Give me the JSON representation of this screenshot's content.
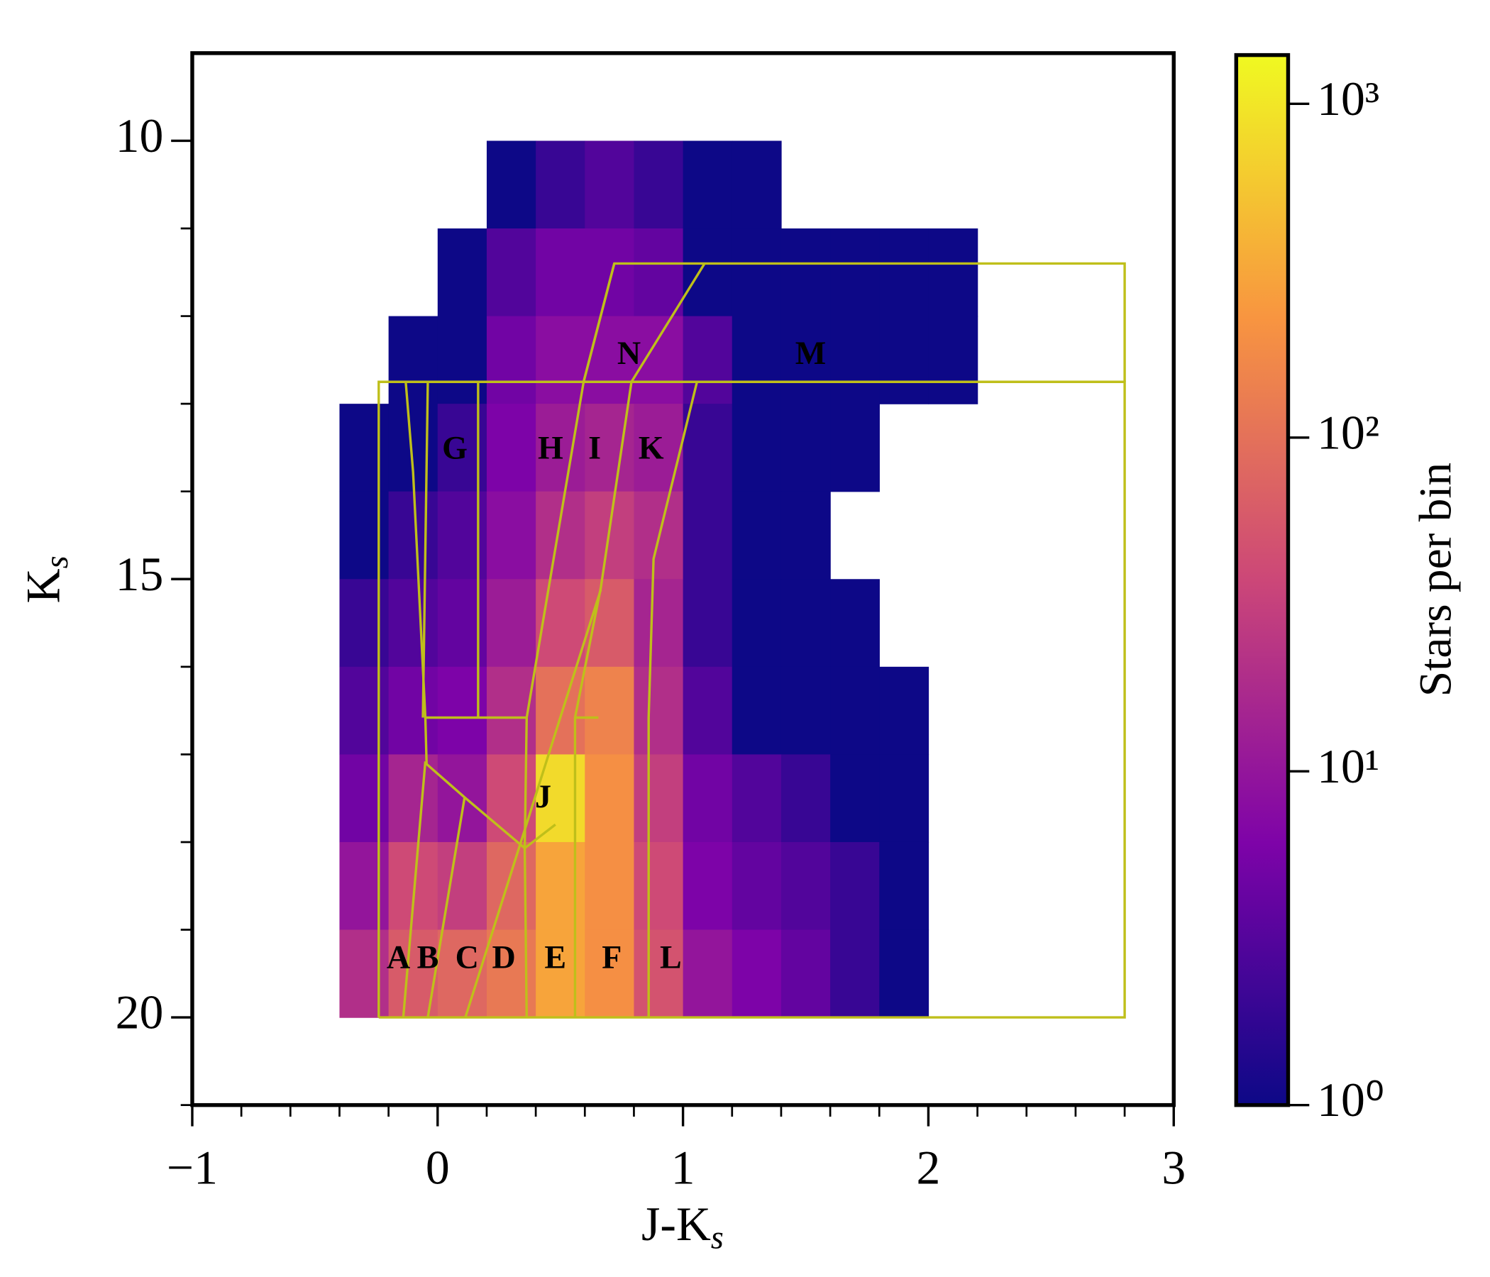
{
  "chart_data": {
    "type": "hess",
    "xlabel": {
      "main": "J-K",
      "sub": "s"
    },
    "ylabel": {
      "main": "K",
      "sub": "s"
    },
    "colorbar_label": "Stars per bin",
    "xlim": [
      -1,
      3
    ],
    "ylim": [
      21,
      9
    ],
    "xticks": [
      {
        "value": -1,
        "label": "−1"
      },
      0,
      1,
      2,
      3
    ],
    "yticks": [
      10,
      15,
      20
    ],
    "xminorticks": [
      -0.8,
      -0.6,
      -0.4,
      -0.2,
      0.2,
      0.4,
      0.6,
      0.8,
      1.2,
      1.4,
      1.6,
      1.8,
      2.2,
      2.4,
      2.6,
      2.8
    ],
    "yminorticks": [
      11,
      12,
      13,
      14,
      16,
      17,
      18,
      19,
      21
    ],
    "log_color": true,
    "clim": [
      1,
      1400
    ],
    "cticks": [
      {
        "value": 1,
        "label": "10⁰"
      },
      {
        "value": 10,
        "label": "10¹"
      },
      {
        "value": 100,
        "label": "10²"
      },
      {
        "value": 1000,
        "label": "10³"
      }
    ],
    "xbins": [
      -0.4,
      -0.2,
      0,
      0.2,
      0.4,
      0.6,
      0.8,
      1.0,
      1.2,
      1.4,
      1.6,
      1.8,
      2.0,
      2.2
    ],
    "ybins": [
      10,
      11,
      12,
      13,
      14,
      15,
      16,
      17,
      18,
      19,
      20
    ],
    "counts": [
      [
        0,
        0,
        0,
        1,
        2,
        3,
        2,
        1,
        1,
        0,
        0,
        0,
        0
      ],
      [
        0,
        0,
        1,
        3,
        5,
        5,
        4,
        1,
        1,
        1,
        1,
        1,
        1
      ],
      [
        0,
        1,
        1,
        5,
        8,
        8,
        8,
        3,
        1,
        1,
        1,
        1,
        1
      ],
      [
        1,
        1,
        2,
        6,
        12,
        15,
        12,
        2,
        1,
        1,
        1,
        0,
        0
      ],
      [
        1,
        2,
        3,
        8,
        20,
        30,
        20,
        2,
        1,
        1,
        0,
        0,
        0
      ],
      [
        2,
        3,
        4,
        12,
        40,
        60,
        15,
        2,
        1,
        1,
        1,
        0,
        0
      ],
      [
        3,
        5,
        6,
        20,
        100,
        150,
        20,
        3,
        1,
        1,
        1,
        1,
        0
      ],
      [
        5,
        15,
        10,
        40,
        800,
        200,
        30,
        5,
        3,
        2,
        1,
        1,
        0
      ],
      [
        10,
        40,
        30,
        80,
        300,
        200,
        40,
        6,
        4,
        3,
        2,
        1,
        0
      ],
      [
        20,
        60,
        80,
        120,
        300,
        200,
        50,
        10,
        6,
        4,
        2,
        1,
        0
      ]
    ],
    "boundary_color": "#bfbf1a",
    "boundaries": [
      {
        "x": [
          -0.24,
          -0.24,
          2.8,
          2.8,
          -0.24
        ],
        "y": [
          20,
          12.75,
          12.75,
          20,
          20
        ]
      },
      {
        "x": [
          0.595,
          0.72,
          2.8,
          2.8
        ],
        "y": [
          12.75,
          11.4,
          11.4,
          12.75
        ]
      },
      {
        "x": [
          1.088,
          0.79
        ],
        "y": [
          11.4,
          12.75
        ]
      },
      {
        "x": [
          -0.13,
          -0.1,
          -0.05,
          0.36
        ],
        "y": [
          12.75,
          13.78,
          16.58,
          16.58
        ]
      },
      {
        "x": [
          -0.04,
          -0.06
        ],
        "y": [
          12.75,
          16.58
        ]
      },
      {
        "x": [
          0.165,
          0.165
        ],
        "y": [
          12.75,
          16.58
        ]
      },
      {
        "x": [
          -0.05,
          -0.045,
          0.11,
          0.355,
          0.48
        ],
        "y": [
          16.58,
          17.11,
          17.49,
          18.07,
          17.8
        ]
      },
      {
        "x": [
          0.72,
          0.595,
          0.363,
          0.355,
          0.363
        ],
        "y": [
          11.4,
          12.75,
          16.58,
          18.07,
          20
        ]
      },
      {
        "x": [
          0.79,
          0.665,
          0.56,
          0.56
        ],
        "y": [
          12.75,
          15.1,
          16.58,
          20
        ]
      },
      {
        "x": [
          1.057,
          0.88,
          0.86,
          0.86
        ],
        "y": [
          12.75,
          14.77,
          16.58,
          20
        ]
      },
      {
        "x": [
          0.56,
          0.655
        ],
        "y": [
          16.58,
          16.58
        ]
      },
      {
        "x": [
          0.113,
          0.665
        ],
        "y": [
          20,
          15.12
        ]
      },
      {
        "x": [
          -0.14,
          -0.05
        ],
        "y": [
          20,
          17.08
        ]
      },
      {
        "x": [
          -0.04,
          0.11
        ],
        "y": [
          20,
          17.49
        ]
      }
    ],
    "regions": [
      {
        "label": "A",
        "x": -0.16,
        "y": 19.35,
        "color": "#ffffff"
      },
      {
        "label": "B",
        "x": -0.04,
        "y": 19.35,
        "color": "#ffffff"
      },
      {
        "label": "C",
        "x": 0.12,
        "y": 19.35,
        "color": "#ffffff"
      },
      {
        "label": "D",
        "x": 0.27,
        "y": 19.35,
        "color": "#ffffff"
      },
      {
        "label": "E",
        "x": 0.48,
        "y": 19.35,
        "color": "#ffffff"
      },
      {
        "label": "F",
        "x": 0.71,
        "y": 19.35,
        "color": "#ffffff"
      },
      {
        "label": "L",
        "x": 0.95,
        "y": 19.35,
        "color": "#ffffff"
      },
      {
        "label": "J",
        "x": 0.43,
        "y": 17.52,
        "color": "#ffffff"
      },
      {
        "label": "G",
        "x": 0.07,
        "y": 13.54,
        "color": "#111111"
      },
      {
        "label": "H",
        "x": 0.46,
        "y": 13.54,
        "color": "#ffffff"
      },
      {
        "label": "I",
        "x": 0.64,
        "y": 13.54,
        "color": "#ffffff"
      },
      {
        "label": "K",
        "x": 0.87,
        "y": 13.54,
        "color": "#ffffff"
      },
      {
        "label": "N",
        "x": 0.78,
        "y": 12.46,
        "color": "#ffffff"
      },
      {
        "label": "M",
        "x": 1.52,
        "y": 12.46,
        "color": "#111111"
      }
    ]
  }
}
